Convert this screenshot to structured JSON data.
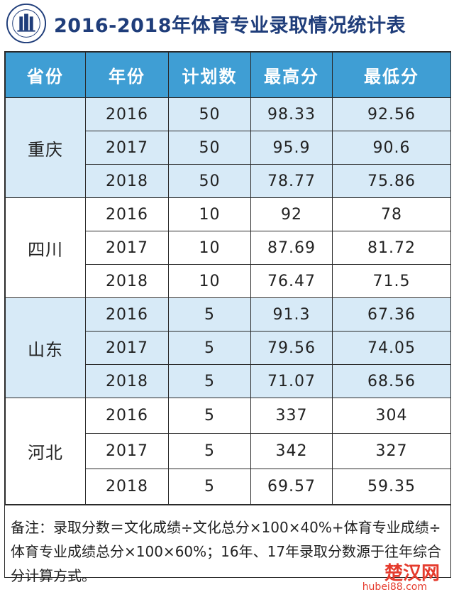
{
  "title": "2016-2018年体育专业录取情况统计表",
  "headers": [
    "省份",
    "年份",
    "计划数",
    "最高分",
    "最低分"
  ],
  "provinces": [
    {
      "name": "重庆",
      "rows": [
        {
          "year": "2016",
          "plan": "50",
          "max": "98.33",
          "min": "92.56"
        },
        {
          "year": "2017",
          "plan": "50",
          "max": "95.9",
          "min": "90.6"
        },
        {
          "year": "2018",
          "plan": "50",
          "max": "78.77",
          "min": "75.86"
        }
      ]
    },
    {
      "name": "四川",
      "rows": [
        {
          "year": "2016",
          "plan": "10",
          "max": "92",
          "min": "78"
        },
        {
          "year": "2017",
          "plan": "10",
          "max": "87.69",
          "min": "81.72"
        },
        {
          "year": "2018",
          "plan": "10",
          "max": "76.47",
          "min": "71.5"
        }
      ]
    },
    {
      "name": "山东",
      "rows": [
        {
          "year": "2016",
          "plan": "5",
          "max": "91.3",
          "min": "67.36"
        },
        {
          "year": "2017",
          "plan": "5",
          "max": "79.56",
          "min": "74.05"
        },
        {
          "year": "2018",
          "plan": "5",
          "max": "71.07",
          "min": "68.56"
        }
      ]
    },
    {
      "name": "河北",
      "rows": [
        {
          "year": "2016",
          "plan": "5",
          "max": "337",
          "min": "304"
        },
        {
          "year": "2017",
          "plan": "5",
          "max": "342",
          "min": "327"
        },
        {
          "year": "2018",
          "plan": "5",
          "max": "69.57",
          "min": "59.35"
        }
      ]
    }
  ],
  "note": "备注：录取分数＝文化成绩÷文化总分×100×40%+体育专业成绩÷体育专业成绩总分×100×60%；16年、17年录取分数源于往年综合分计算方式。",
  "watermark": {
    "brand": "楚汉网",
    "url": "hubei88.com"
  },
  "colors": {
    "header": "#3f9ed4",
    "shaded": "#d7eaf7",
    "title": "#1f3d7a",
    "watermark": "#e53b2d"
  }
}
